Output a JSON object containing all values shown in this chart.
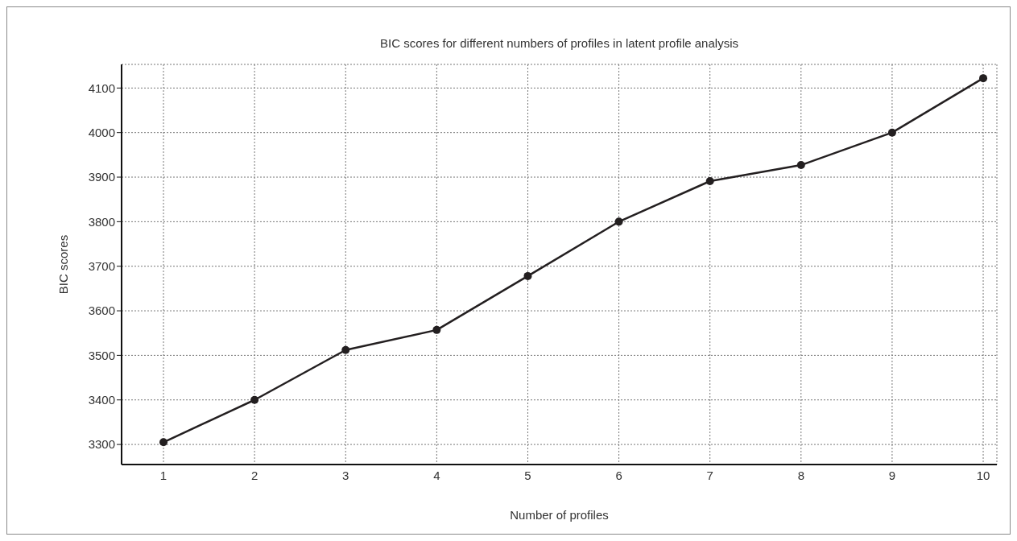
{
  "chart_data": {
    "type": "line",
    "title": "BIC scores for different numbers of profiles in latent profile analysis",
    "xlabel": "Number of profiles",
    "ylabel": "BIC scores",
    "x": [
      1,
      2,
      3,
      4,
      5,
      6,
      7,
      8,
      9,
      10
    ],
    "series": [
      {
        "color": "#231f20",
        "values": [
          3305,
          3400,
          3512,
          3557,
          3678,
          3800,
          3891,
          3927,
          4000,
          4122
        ]
      }
    ],
    "xlim": [
      0.54,
      10.15
    ],
    "xticks": [
      1,
      2,
      3,
      4,
      5,
      6,
      7,
      8,
      9,
      10
    ],
    "ylim": [
      3255,
      4153
    ],
    "yticks": [
      3300,
      3400,
      3500,
      3600,
      3700,
      3800,
      3900,
      4000,
      4100
    ],
    "grid": true,
    "marker": "circle",
    "line_style": "solid",
    "legend": false
  }
}
